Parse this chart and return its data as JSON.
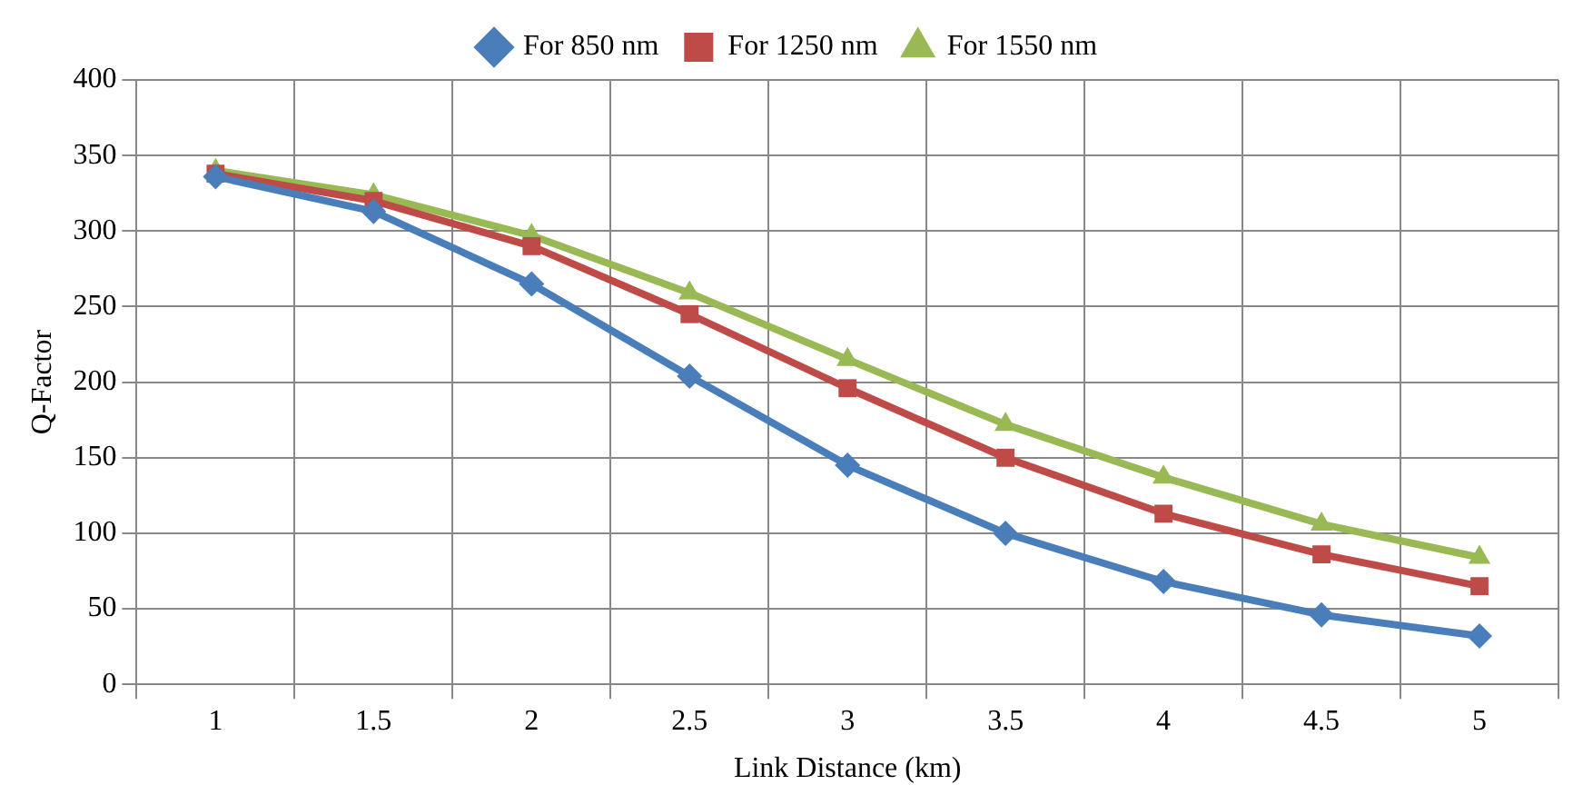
{
  "chart_data": {
    "type": "line",
    "xlabel": "Link Distance (km)",
    "ylabel": "Q-Factor",
    "categories": [
      "1",
      "1.5",
      "2",
      "2.5",
      "3",
      "3.5",
      "4",
      "4.5",
      "5"
    ],
    "series": [
      {
        "name": "For 850 nm",
        "color": "#4a7ebb",
        "marker": "diamond",
        "values": [
          336,
          313,
          265,
          204,
          145,
          100,
          68,
          46,
          32
        ]
      },
      {
        "name": "For 1250 nm",
        "color": "#be4b48",
        "marker": "square",
        "values": [
          338,
          320,
          290,
          245,
          196,
          150,
          113,
          86,
          65
        ]
      },
      {
        "name": "For 1550 nm",
        "color": "#98b954",
        "marker": "triangle",
        "values": [
          340,
          324,
          297,
          259,
          215,
          172,
          137,
          106,
          84
        ]
      }
    ],
    "ylim": [
      0,
      400
    ],
    "yticks": [
      0,
      50,
      100,
      150,
      200,
      250,
      300,
      350,
      400
    ],
    "grid": true,
    "legend": "top",
    "line_style": "solid"
  }
}
